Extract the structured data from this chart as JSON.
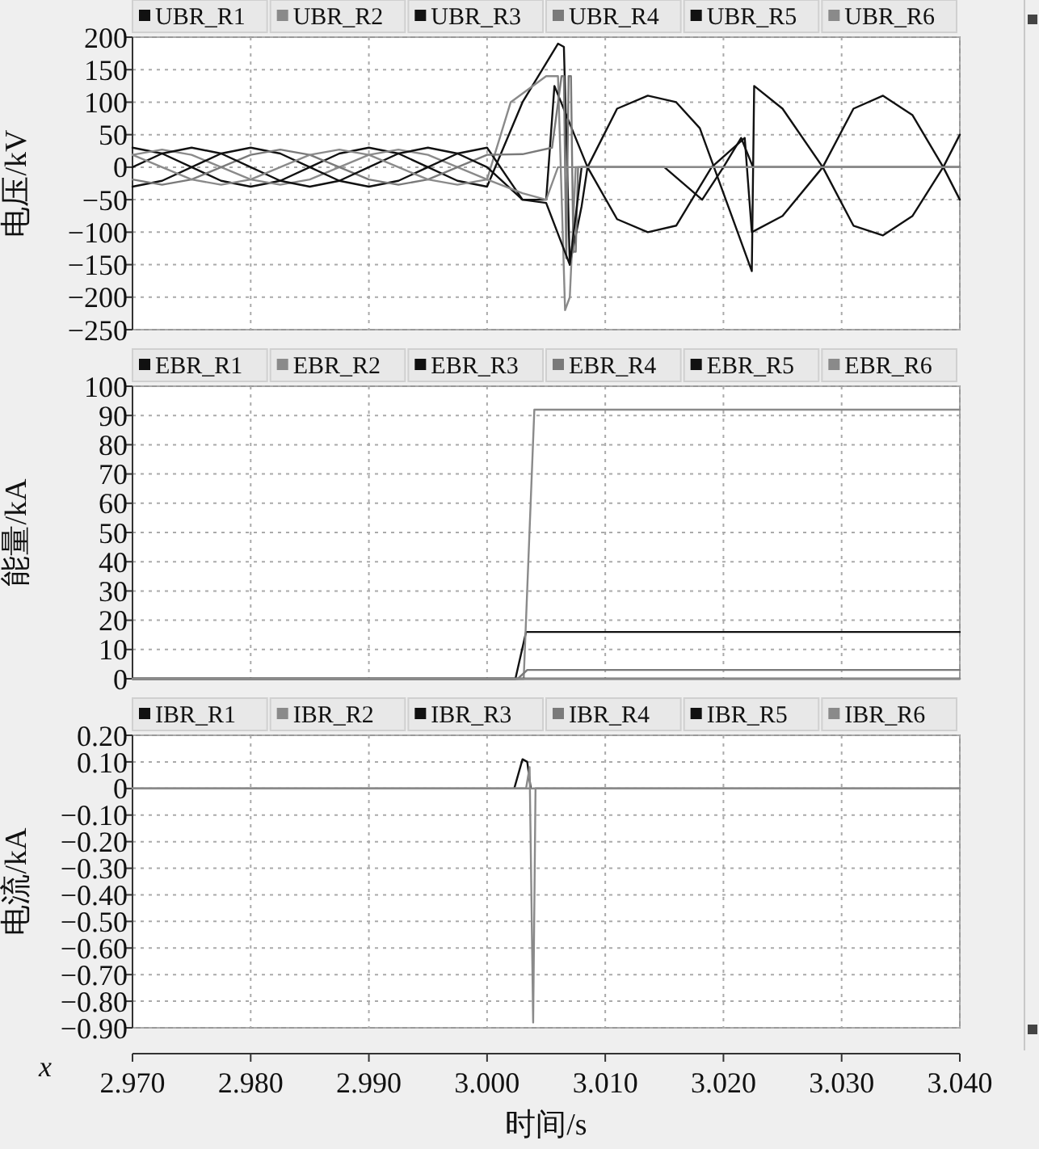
{
  "chart_data": [
    {
      "type": "line",
      "ylabel": "电压/kV",
      "legend": "top",
      "grid": true,
      "tick_labels": "y",
      "line_style": "solid",
      "marker": "none",
      "xlim": [
        2.97,
        3.04
      ],
      "xticks": [
        2.97,
        2.98,
        2.99,
        3.0,
        3.01,
        3.02,
        3.03,
        3.04
      ],
      "ylim": [
        -250,
        200
      ],
      "yticks": [
        {
          "value": -250,
          "label": "−250"
        },
        {
          "value": -200,
          "label": "−200"
        },
        {
          "value": -150,
          "label": "−150"
        },
        {
          "value": -100,
          "label": "−100"
        },
        {
          "value": -50,
          "label": "−50"
        },
        0,
        50,
        100,
        150,
        200
      ],
      "series": [
        {
          "name": "UBR_R1",
          "color": "#111111",
          "x": [
            2.97,
            2.9725,
            2.975,
            2.9775,
            2.98,
            2.9825,
            2.985,
            2.9875,
            2.99,
            2.9925,
            2.995,
            2.9975,
            3.0,
            3.003,
            3.006,
            3.0065,
            3.007,
            3.008,
            3.0085,
            3.011,
            3.0136,
            3.016,
            3.018,
            3.02,
            3.0224,
            3.0226,
            3.025,
            3.0284,
            3.031,
            3.0335,
            3.036,
            3.0386,
            3.04
          ],
          "values": [
            30,
            21,
            0,
            -21,
            -30,
            -21,
            0,
            21,
            30,
            21,
            0,
            -21,
            -30,
            100,
            190,
            185,
            -150,
            -60,
            0,
            90,
            110,
            100,
            60,
            -40,
            -160,
            125,
            90,
            0,
            -90,
            -105,
            -75,
            0,
            50
          ]
        },
        {
          "name": "UBR_R2",
          "color": "#8a8a8a",
          "x": [
            2.97,
            2.9725,
            2.975,
            2.9775,
            2.98,
            2.9825,
            2.985,
            2.9875,
            2.99,
            2.9925,
            2.995,
            2.9975,
            3.0,
            3.002,
            3.005,
            3.006,
            3.0066,
            3.007,
            3.0075,
            3.04
          ],
          "values": [
            19,
            27,
            19,
            0,
            -19,
            -27,
            -19,
            0,
            19,
            27,
            19,
            0,
            -19,
            100,
            140,
            140,
            -220,
            -200,
            0,
            0
          ]
        },
        {
          "name": "UBR_R3",
          "color": "#111111",
          "x": [
            2.97,
            2.9725,
            2.975,
            2.9775,
            2.98,
            2.9825,
            2.985,
            2.9875,
            2.99,
            2.9925,
            2.995,
            2.9975,
            3.0,
            3.003,
            3.005,
            3.0057,
            3.0085,
            3.011,
            3.0136,
            3.016,
            3.019,
            3.0218,
            3.0224,
            3.025,
            3.0284,
            3.031,
            3.0335,
            3.036,
            3.0386,
            3.04
          ],
          "values": [
            -30,
            -21,
            0,
            21,
            30,
            21,
            0,
            -21,
            -30,
            -21,
            0,
            21,
            30,
            -50,
            -50,
            125,
            0,
            -80,
            -100,
            -90,
            0,
            45,
            -100,
            -75,
            0,
            90,
            110,
            80,
            0,
            -50
          ]
        },
        {
          "name": "UBR_R4",
          "color": "#7a7a7a",
          "x": [
            2.97,
            2.9725,
            2.975,
            2.9775,
            2.98,
            2.9825,
            2.985,
            2.9875,
            2.99,
            2.9925,
            2.995,
            2.9975,
            3.0,
            3.003,
            3.0055,
            3.0063,
            3.0065,
            3.0067,
            3.0069,
            3.0071,
            3.0073,
            3.0075,
            3.0077,
            3.04
          ],
          "values": [
            -19,
            -27,
            -19,
            0,
            19,
            27,
            19,
            0,
            -19,
            -27,
            -19,
            0,
            19,
            20,
            30,
            140,
            140,
            -140,
            140,
            140,
            -130,
            -130,
            0,
            0
          ]
        },
        {
          "name": "UBR_R5",
          "color": "#111111",
          "x": [
            2.97,
            2.9725,
            2.975,
            2.9775,
            2.98,
            2.9825,
            2.985,
            2.9875,
            2.99,
            2.9925,
            2.995,
            2.9975,
            3.0,
            3.003,
            3.005,
            3.007,
            3.008,
            3.015,
            3.0182,
            3.02,
            3.0215,
            3.0225,
            3.04
          ],
          "values": [
            0,
            21,
            30,
            21,
            0,
            -21,
            -30,
            -21,
            0,
            21,
            30,
            21,
            0,
            -50,
            -55,
            -150,
            0,
            0,
            -50,
            0,
            45,
            0,
            0
          ]
        },
        {
          "name": "UBR_R6",
          "color": "#8a8a8a",
          "x": [
            2.97,
            2.9725,
            2.975,
            2.9775,
            2.98,
            2.9825,
            2.985,
            2.9875,
            2.99,
            2.9925,
            2.995,
            2.9975,
            3.0,
            3.003,
            3.005,
            3.006,
            3.04
          ],
          "values": [
            19,
            0,
            -19,
            -27,
            -19,
            0,
            19,
            27,
            19,
            0,
            -19,
            -27,
            -19,
            -40,
            -50,
            0,
            0
          ]
        }
      ]
    },
    {
      "type": "line",
      "ylabel": "能量/kA",
      "legend": "top",
      "grid": true,
      "tick_labels": "y",
      "line_style": "solid",
      "marker": "none",
      "xlim": [
        2.97,
        3.04
      ],
      "xticks": [
        2.97,
        2.98,
        2.99,
        3.0,
        3.01,
        3.02,
        3.03,
        3.04
      ],
      "ylim": [
        0,
        100
      ],
      "yticks": [
        0,
        10,
        20,
        30,
        40,
        50,
        60,
        70,
        80,
        90,
        100
      ],
      "series": [
        {
          "name": "EBR_R1",
          "color": "#111111",
          "x": [
            2.97,
            3.0024,
            3.0033,
            3.04
          ],
          "values": [
            0,
            0,
            16,
            16
          ]
        },
        {
          "name": "EBR_R2",
          "color": "#8a8a8a",
          "x": [
            2.97,
            3.0031,
            3.004,
            3.04
          ],
          "values": [
            0,
            0,
            92,
            92
          ]
        },
        {
          "name": "EBR_R3",
          "color": "#111111",
          "x": [
            2.97,
            3.04
          ],
          "values": [
            0,
            0
          ]
        },
        {
          "name": "EBR_R4",
          "color": "#7a7a7a",
          "x": [
            2.97,
            3.0026,
            3.0034,
            3.04
          ],
          "values": [
            0,
            0,
            3,
            3
          ]
        },
        {
          "name": "EBR_R5",
          "color": "#111111",
          "values": [
            null,
            null
          ]
        },
        {
          "name": "EBR_R6",
          "color": "#8a8a8a",
          "x": [
            2.97,
            3.04
          ],
          "values": [
            0,
            0
          ]
        }
      ]
    },
    {
      "type": "line",
      "xlabel": "时间/s",
      "ylabel": "电流/kA",
      "legend": "top",
      "grid": true,
      "line_style": "solid",
      "marker": "none",
      "annotations": [
        "x"
      ],
      "xlim": [
        2.97,
        3.04
      ],
      "xticks": [
        {
          "value": 2.97,
          "label": "2.970"
        },
        {
          "value": 2.98,
          "label": "2.980"
        },
        {
          "value": 2.99,
          "label": "2.990"
        },
        {
          "value": 3.0,
          "label": "3.000"
        },
        {
          "value": 3.01,
          "label": "3.010"
        },
        {
          "value": 3.02,
          "label": "3.020"
        },
        {
          "value": 3.03,
          "label": "3.030"
        },
        {
          "value": 3.04,
          "label": "3.040"
        }
      ],
      "ylim": [
        -0.9,
        0.2
      ],
      "yticks": [
        {
          "value": -0.9,
          "label": "−0.90"
        },
        {
          "value": -0.8,
          "label": "−0.80"
        },
        {
          "value": -0.7,
          "label": "−0.70"
        },
        {
          "value": -0.6,
          "label": "−0.60"
        },
        {
          "value": -0.5,
          "label": "−0.50"
        },
        {
          "value": -0.4,
          "label": "−0.40"
        },
        {
          "value": -0.3,
          "label": "−0.30"
        },
        {
          "value": -0.2,
          "label": "−0.20"
        },
        {
          "value": -0.1,
          "label": "−0.10"
        },
        0,
        {
          "value": 0.1,
          "label": "0.10"
        },
        {
          "value": 0.2,
          "label": "0.20"
        }
      ],
      "series": [
        {
          "name": "IBR_R1",
          "color": "#111111",
          "x": [
            3.0023,
            3.003,
            3.0034,
            3.0037
          ],
          "values": [
            0,
            0.11,
            0.1,
            0
          ]
        },
        {
          "name": "IBR_R2",
          "color": "#8a8a8a",
          "x": [
            2.97,
            3.0033,
            3.0036,
            3.0039,
            3.0041,
            3.04
          ],
          "values": [
            0,
            0,
            0.08,
            -0.88,
            0,
            0
          ]
        },
        {
          "name": "IBR_R3",
          "color": "#111111",
          "values": [
            null,
            null
          ]
        },
        {
          "name": "IBR_R4",
          "color": "#7a7a7a",
          "values": [
            null,
            null
          ]
        },
        {
          "name": "IBR_R5",
          "color": "#111111",
          "values": [
            null,
            null
          ]
        },
        {
          "name": "IBR_R6",
          "color": "#8a8a8a",
          "x": [
            2.97,
            3.04
          ],
          "values": [
            0,
            0
          ]
        }
      ]
    }
  ]
}
